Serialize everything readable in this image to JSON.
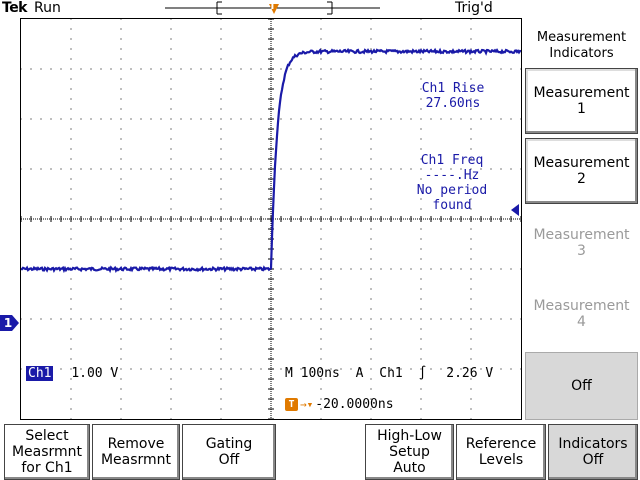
{
  "header": {
    "brand": "Tek",
    "run_state": "Run",
    "trigger_state": "Trig'd",
    "trigger_position_marker": "T"
  },
  "trigger_marker_label": "T",
  "channel_marker_label": "1",
  "measurements": {
    "rise": {
      "line1": "Ch1 Rise",
      "line2": "27.60ns"
    },
    "freq": {
      "line1": "Ch1 Freq",
      "line2": "----.Hz",
      "line3": "No period",
      "line4": "found"
    }
  },
  "status": {
    "channel": "Ch1",
    "volts_div": "1.00 V",
    "timebase": "M 100ns",
    "trigger_mode": "A",
    "trigger_source": "Ch1",
    "trigger_level": "2.26 V",
    "trigger_offset_label": "T",
    "trigger_offset": "-20.0000ns"
  },
  "side_menu": {
    "title_line1": "Measurement",
    "title_line2": "Indicators",
    "buttons": [
      {
        "line1": "Measurement",
        "line2": "1"
      },
      {
        "line1": "Measurement",
        "line2": "2"
      },
      {
        "line1": "Measurement",
        "line2": "3"
      },
      {
        "line1": "Measurement",
        "line2": "4"
      },
      {
        "line1": "Off",
        "line2": ""
      }
    ]
  },
  "bottom_menu": {
    "buttons": [
      {
        "line1": "Select",
        "line2": "Measrmnt",
        "line3": "for Ch1"
      },
      {
        "line1": "Remove",
        "line2": "Measrmnt",
        "line3": ""
      },
      {
        "line1": "Gating",
        "line2": "Off",
        "line3": ""
      },
      {
        "line1": "High-Low",
        "line2": "Setup",
        "line3": "Auto"
      },
      {
        "line1": "Reference",
        "line2": "Levels",
        "line3": ""
      },
      {
        "line1": "Indicators",
        "line2": "Off",
        "line3": ""
      }
    ]
  },
  "colors": {
    "trace": "#1a1aa8",
    "trigger_marker": "#e07a00",
    "graticule": "#000000"
  },
  "waveform": {
    "low_level_div": -1.0,
    "high_level_div": 3.35,
    "edge_time_div": 0.0,
    "rise_time_ns": 27.6,
    "time_per_div_ns": 100
  }
}
